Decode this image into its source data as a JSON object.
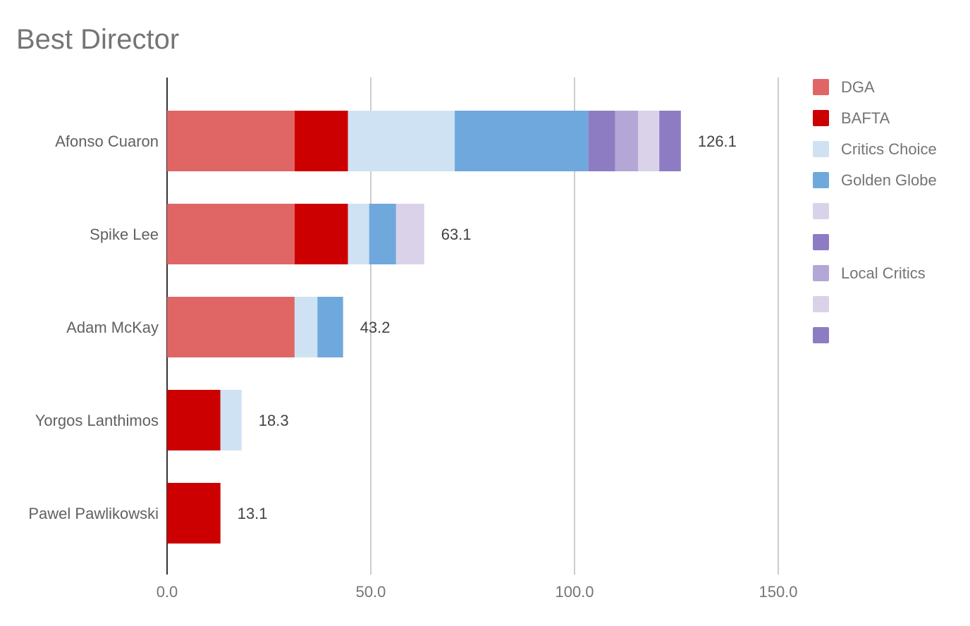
{
  "chart_data": {
    "type": "bar",
    "orientation": "horizontal",
    "stacked": true,
    "title": "Best Director",
    "xlabel": "",
    "ylabel": "",
    "xlim": [
      0,
      150
    ],
    "x_ticks": [
      "0.0",
      "50.0",
      "100.0",
      "150.0"
    ],
    "x_tick_values": [
      0,
      50,
      100,
      150
    ],
    "grid": true,
    "legend_position": "right",
    "categories": [
      "Afonso Cuaron",
      "Spike Lee",
      "Adam McKay",
      "Yorgos Lanthimos",
      "Pawel Pawlikowski"
    ],
    "totals": [
      "126.1",
      "63.1",
      "43.2",
      "18.3",
      "13.1"
    ],
    "series": [
      {
        "name": "DGA",
        "color": "#e06666",
        "values": [
          31.3,
          31.3,
          31.3,
          0,
          0
        ]
      },
      {
        "name": "BAFTA",
        "color": "#cc0000",
        "values": [
          13.1,
          13.1,
          0,
          13.1,
          13.1
        ]
      },
      {
        "name": "Critics Choice",
        "color": "#cfe2f3",
        "values": [
          26.2,
          5.2,
          5.6,
          5.2,
          0
        ]
      },
      {
        "name": "Golden Globe",
        "color": "#6fa8dc",
        "values": [
          32.8,
          6.6,
          6.3,
          0,
          0
        ]
      },
      {
        "name": "",
        "color": "#d9d2e9",
        "values": [
          0,
          6.9,
          0,
          0,
          0
        ]
      },
      {
        "name": "",
        "color": "#8e7cc3",
        "values": [
          6.6,
          0,
          0,
          0,
          0
        ]
      },
      {
        "name": "Local Critics",
        "color": "#b4a7d6",
        "values": [
          5.6,
          0,
          0,
          0,
          0
        ]
      },
      {
        "name": "",
        "color": "#d9d2e9",
        "values": [
          5.2,
          0,
          0,
          0,
          0
        ]
      },
      {
        "name": "",
        "color": "#8e7cc3",
        "values": [
          5.3,
          0,
          0,
          0,
          0
        ]
      }
    ]
  }
}
